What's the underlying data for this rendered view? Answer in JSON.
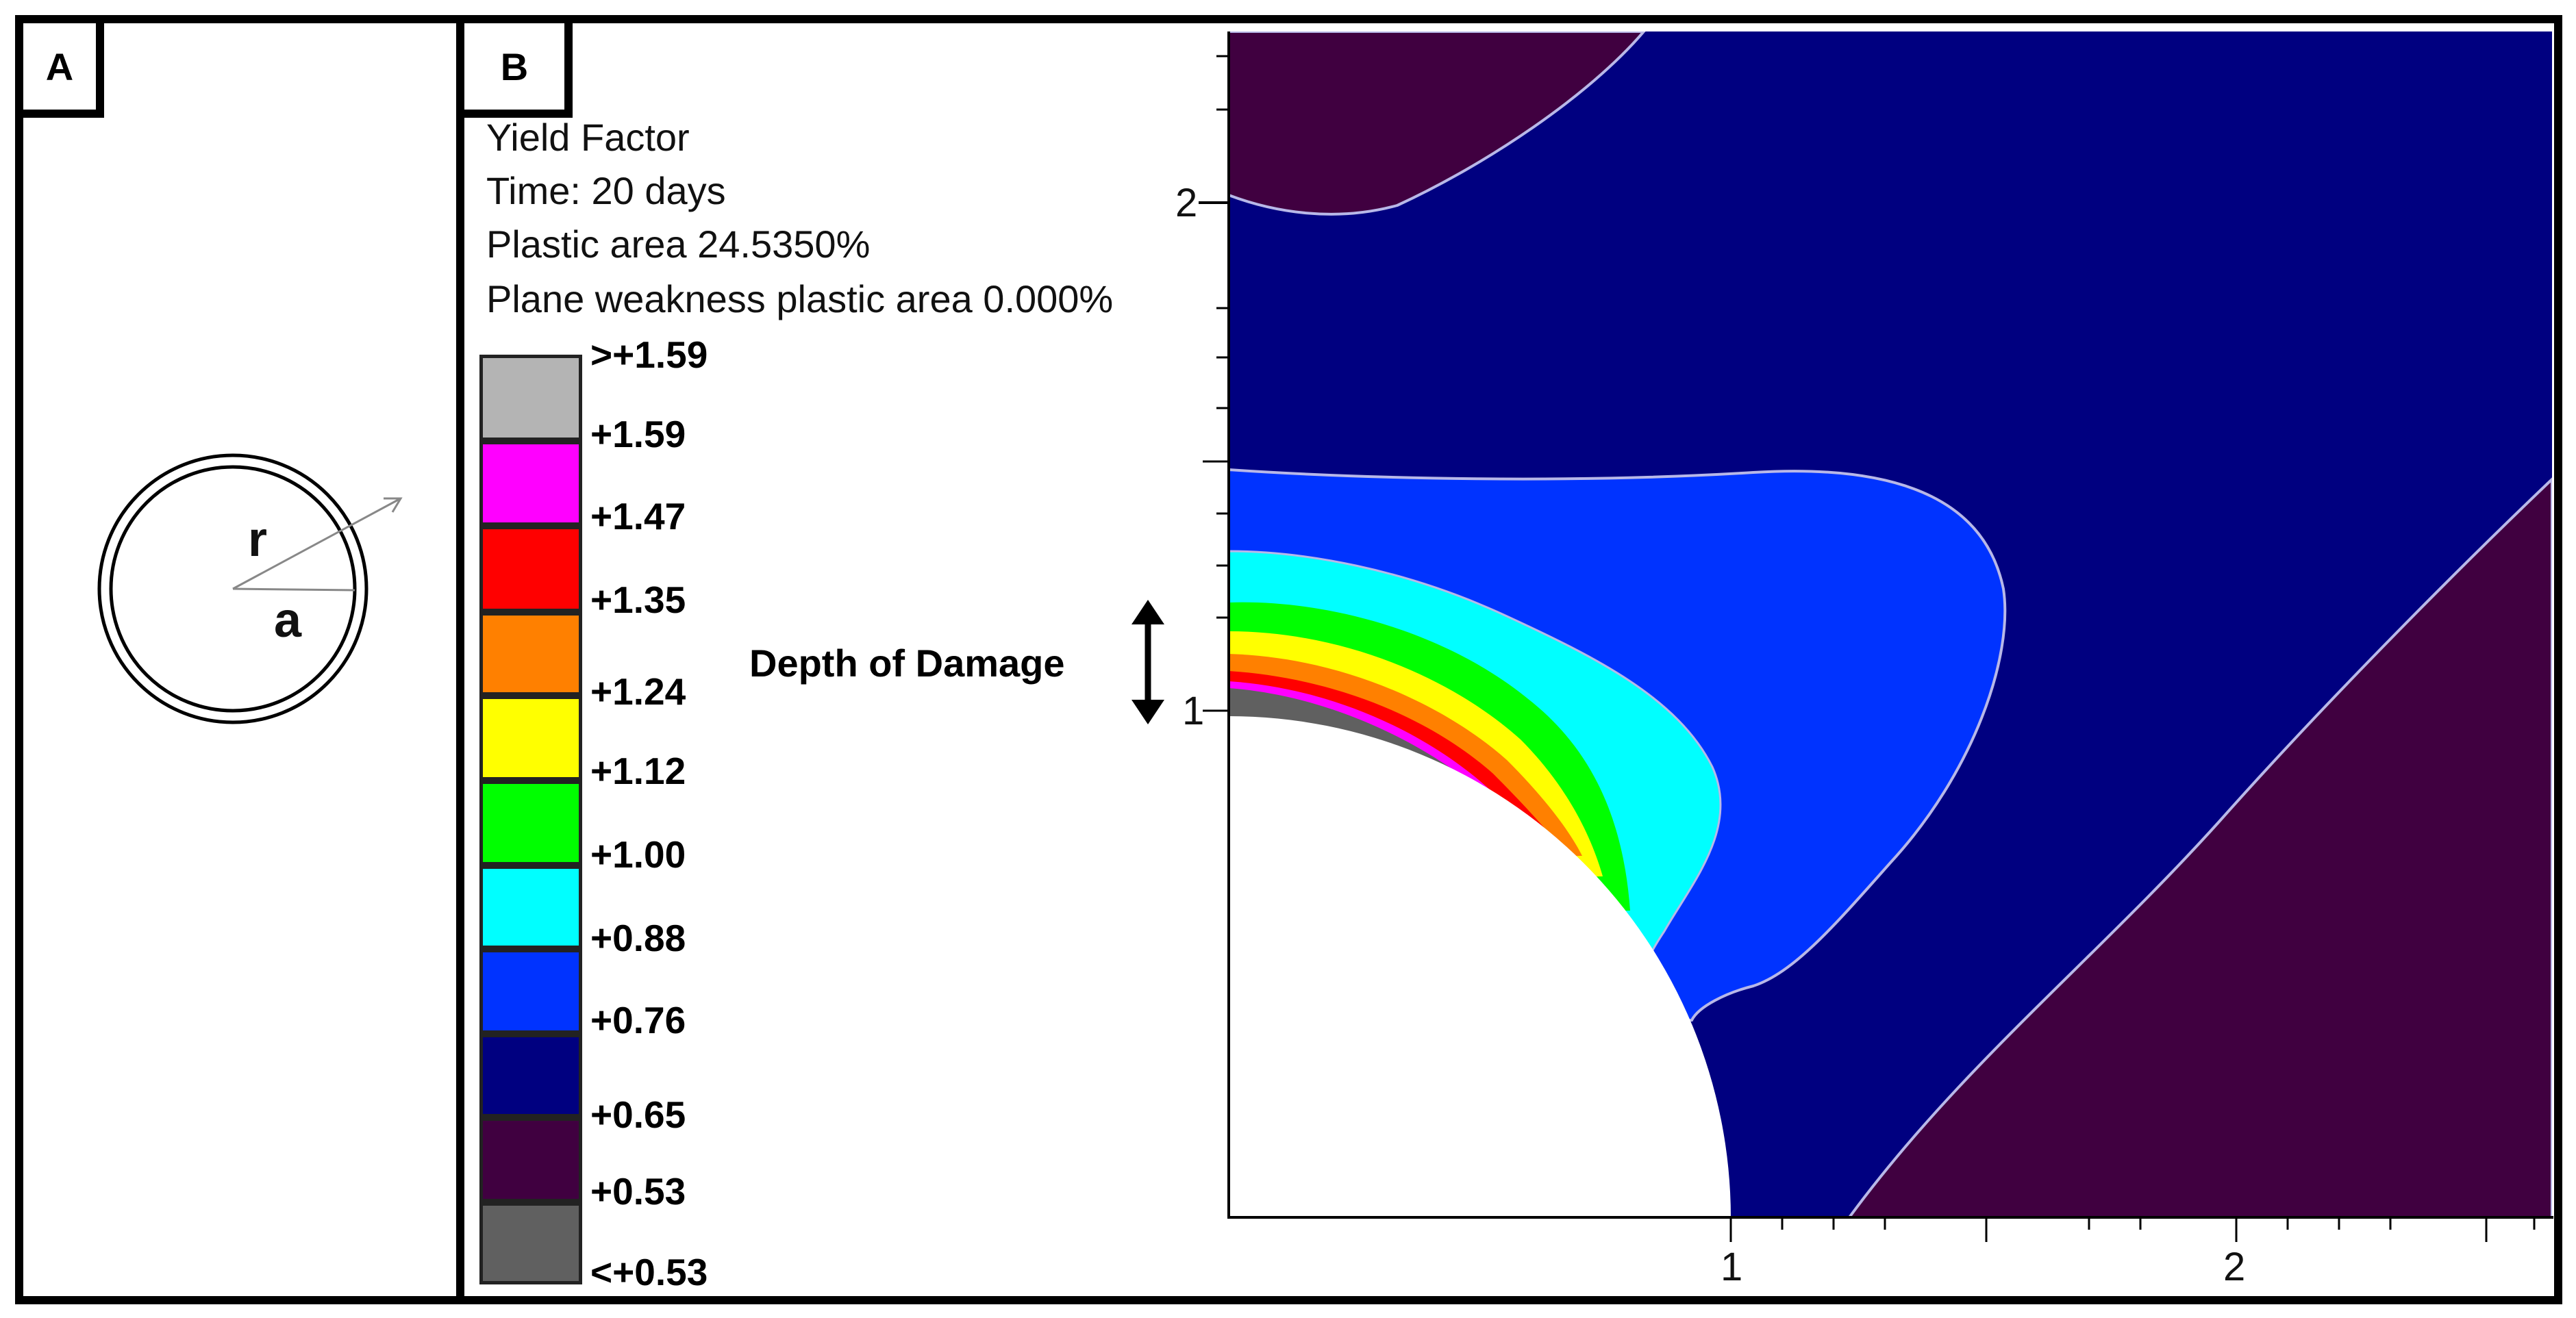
{
  "panel_a": {
    "label": "A",
    "r_label": "r",
    "a_label": "a"
  },
  "panel_b": {
    "label": "B",
    "info": {
      "line1": "Yield Factor",
      "line2": "Time: 20 days",
      "line3": "Plastic area 24.5350%",
      "line4": "Plane weakness plastic area 0.000%"
    },
    "legend": [
      {
        "label": ">+1.59",
        "color": "#b4b4b4"
      },
      {
        "label": "+1.59",
        "color": "#ff00ff"
      },
      {
        "label": "+1.47",
        "color": "#ff0000"
      },
      {
        "label": "+1.35",
        "color": "#ff8000"
      },
      {
        "label": "+1.24",
        "color": "#ffff00"
      },
      {
        "label": "+1.12",
        "color": "#00ff00"
      },
      {
        "label": "+1.00",
        "color": "#00ffff"
      },
      {
        "label": "+0.88",
        "color": "#0033ff"
      },
      {
        "label": "+0.76",
        "color": "#000080"
      },
      {
        "label": "+0.65",
        "color": "#400040"
      },
      {
        "label": "+0.53",
        "color": "#606060"
      },
      {
        "label": "<+0.53",
        "color": ""
      }
    ],
    "annotation": "Depth of Damage",
    "axis": {
      "x_ticks": [
        "1",
        "2"
      ],
      "y_ticks": [
        "1",
        "2"
      ]
    },
    "zone_colors": {
      "purple": "#400040",
      "navy": "#000080",
      "blue": "#0033ff",
      "cyan": "#00ffff",
      "green": "#00ff00",
      "yellow": "#ffff00",
      "orange": "#ff8000",
      "red": "#ff0000",
      "magenta": "#ff00ff",
      "gray": "#606060"
    }
  }
}
